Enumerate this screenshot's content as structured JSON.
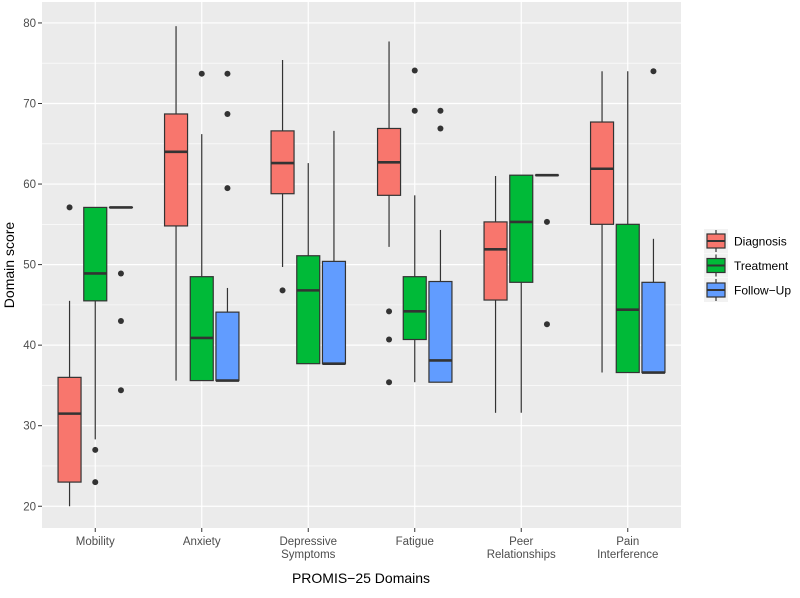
{
  "chart_data": {
    "type": "boxplot",
    "title": "",
    "xlabel": "PROMIS−25 Domains",
    "ylabel": "Domain score",
    "ylim": [
      17.3,
      82.6
    ],
    "yticks": [
      20,
      30,
      40,
      50,
      60,
      70,
      80
    ],
    "grid": true,
    "legend_position": "right",
    "categories": [
      [
        "Mobility"
      ],
      [
        "Anxiety"
      ],
      [
        "Depressive",
        "Symptoms"
      ],
      [
        "Fatigue"
      ],
      [
        "Peer",
        "Relationships"
      ],
      [
        "Pain",
        "Interference"
      ]
    ],
    "series": [
      {
        "name": "Diagnosis",
        "color": "#F8766D",
        "boxes": [
          {
            "lower": 20.0,
            "q1": 23.0,
            "median": 31.5,
            "q3": 36.0,
            "upper": 45.5,
            "outliers": [
              57.1
            ]
          },
          {
            "lower": 35.6,
            "q1": 54.8,
            "median": 64.0,
            "q3": 68.7,
            "upper": 79.6,
            "outliers": []
          },
          {
            "lower": 49.7,
            "q1": 58.8,
            "median": 62.6,
            "q3": 66.6,
            "upper": 75.4,
            "outliers": [
              46.8
            ]
          },
          {
            "lower": 52.2,
            "q1": 58.6,
            "median": 62.7,
            "q3": 66.9,
            "upper": 77.7,
            "outliers": [
              44.2,
              40.7,
              35.4
            ]
          },
          {
            "lower": 31.6,
            "q1": 45.6,
            "median": 51.9,
            "q3": 55.3,
            "upper": 61.0,
            "outliers": []
          },
          {
            "lower": 36.6,
            "q1": 55.0,
            "median": 61.9,
            "q3": 67.7,
            "upper": 74.0,
            "outliers": []
          }
        ]
      },
      {
        "name": "Treatment",
        "color": "#00BA38",
        "boxes": [
          {
            "lower": 28.3,
            "q1": 45.5,
            "median": 48.9,
            "q3": 57.1,
            "upper": 57.1,
            "outliers": [
              27.0,
              23.0
            ]
          },
          {
            "lower": 35.6,
            "q1": 35.6,
            "median": 40.9,
            "q3": 48.5,
            "upper": 66.2,
            "outliers": [
              73.7
            ]
          },
          {
            "lower": 37.7,
            "q1": 37.7,
            "median": 46.8,
            "q3": 51.1,
            "upper": 62.6,
            "outliers": []
          },
          {
            "lower": 35.4,
            "q1": 40.7,
            "median": 44.2,
            "q3": 48.5,
            "upper": 58.6,
            "outliers": [
              74.1,
              69.1
            ]
          },
          {
            "lower": 31.6,
            "q1": 47.8,
            "median": 55.3,
            "q3": 61.1,
            "upper": 61.1,
            "outliers": []
          },
          {
            "lower": 36.6,
            "q1": 36.6,
            "median": 44.4,
            "q3": 55.0,
            "upper": 74.0,
            "outliers": []
          }
        ]
      },
      {
        "name": "Follow−Up",
        "color": "#619CFF",
        "boxes": [
          {
            "lower": 57.1,
            "q1": 57.1,
            "median": 57.1,
            "q3": 57.1,
            "upper": 57.1,
            "outliers": [
              48.9,
              43.0,
              34.4
            ]
          },
          {
            "lower": 35.6,
            "q1": 35.6,
            "median": 35.6,
            "q3": 44.1,
            "upper": 47.1,
            "outliers": [
              73.7,
              68.7,
              59.5
            ]
          },
          {
            "lower": 37.7,
            "q1": 37.7,
            "median": 37.7,
            "q3": 50.4,
            "upper": 66.6,
            "outliers": []
          },
          {
            "lower": 35.4,
            "q1": 35.4,
            "median": 38.1,
            "q3": 47.9,
            "upper": 54.3,
            "outliers": [
              69.1,
              66.9
            ]
          },
          {
            "lower": 61.1,
            "q1": 61.1,
            "median": 61.1,
            "q3": 61.1,
            "upper": 61.1,
            "outliers": [
              55.3,
              42.6
            ]
          },
          {
            "lower": 36.6,
            "q1": 36.6,
            "median": 36.6,
            "q3": 47.8,
            "upper": 53.2,
            "outliers": [
              74.0
            ]
          }
        ]
      }
    ]
  }
}
